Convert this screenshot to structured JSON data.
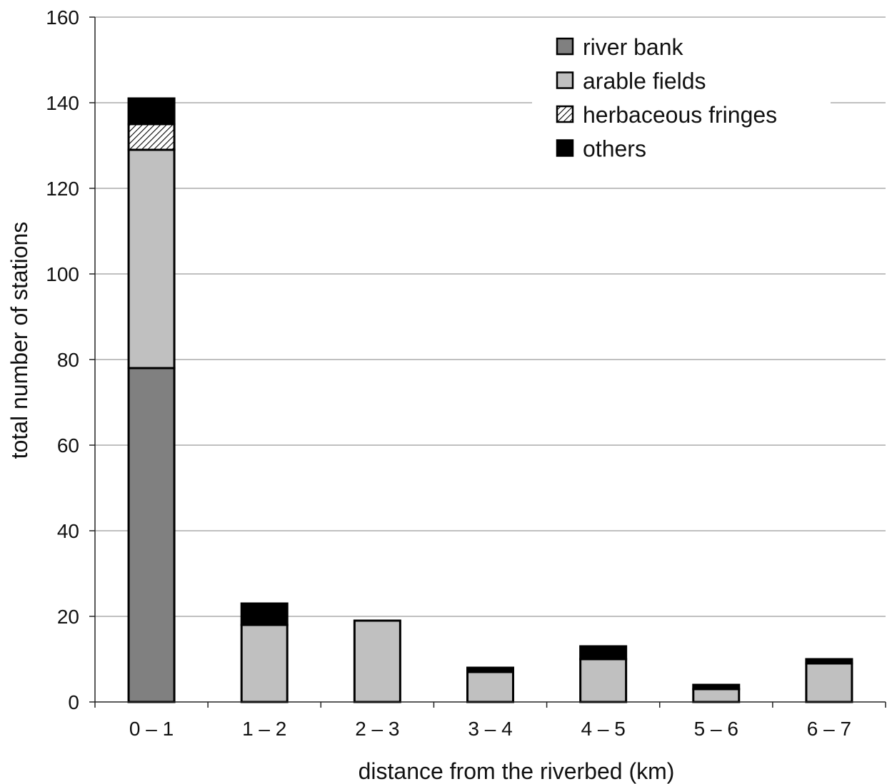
{
  "chart_data": {
    "type": "bar",
    "stacked": true,
    "title": "",
    "xlabel": "distance from the riverbed (km)",
    "ylabel": "total number of stations",
    "ylim": [
      0,
      160
    ],
    "yticks": [
      "0",
      "20",
      "40",
      "60",
      "80",
      "100",
      "120",
      "140",
      "160"
    ],
    "grid": true,
    "legend_position": "top-right",
    "categories": [
      "0 – 1",
      "1 – 2",
      "2 – 3",
      "3 – 4",
      "4 – 5",
      "5 – 6",
      "6 – 7"
    ],
    "series": [
      {
        "name": "river bank",
        "values": [
          78,
          0,
          0,
          0,
          0,
          0,
          0
        ],
        "color": "#808080",
        "pattern": "solid"
      },
      {
        "name": "arable fields",
        "values": [
          51,
          18,
          19,
          7,
          10,
          3,
          9
        ],
        "color": "#c0c0c0",
        "pattern": "solid"
      },
      {
        "name": "herbaceous fringes",
        "values": [
          6,
          0,
          0,
          0,
          0,
          0,
          0
        ],
        "color": "#ffffff",
        "pattern": "hatch"
      },
      {
        "name": "others",
        "values": [
          6,
          5,
          0,
          1,
          3,
          1,
          1
        ],
        "color": "#000000",
        "pattern": "solid"
      }
    ]
  }
}
